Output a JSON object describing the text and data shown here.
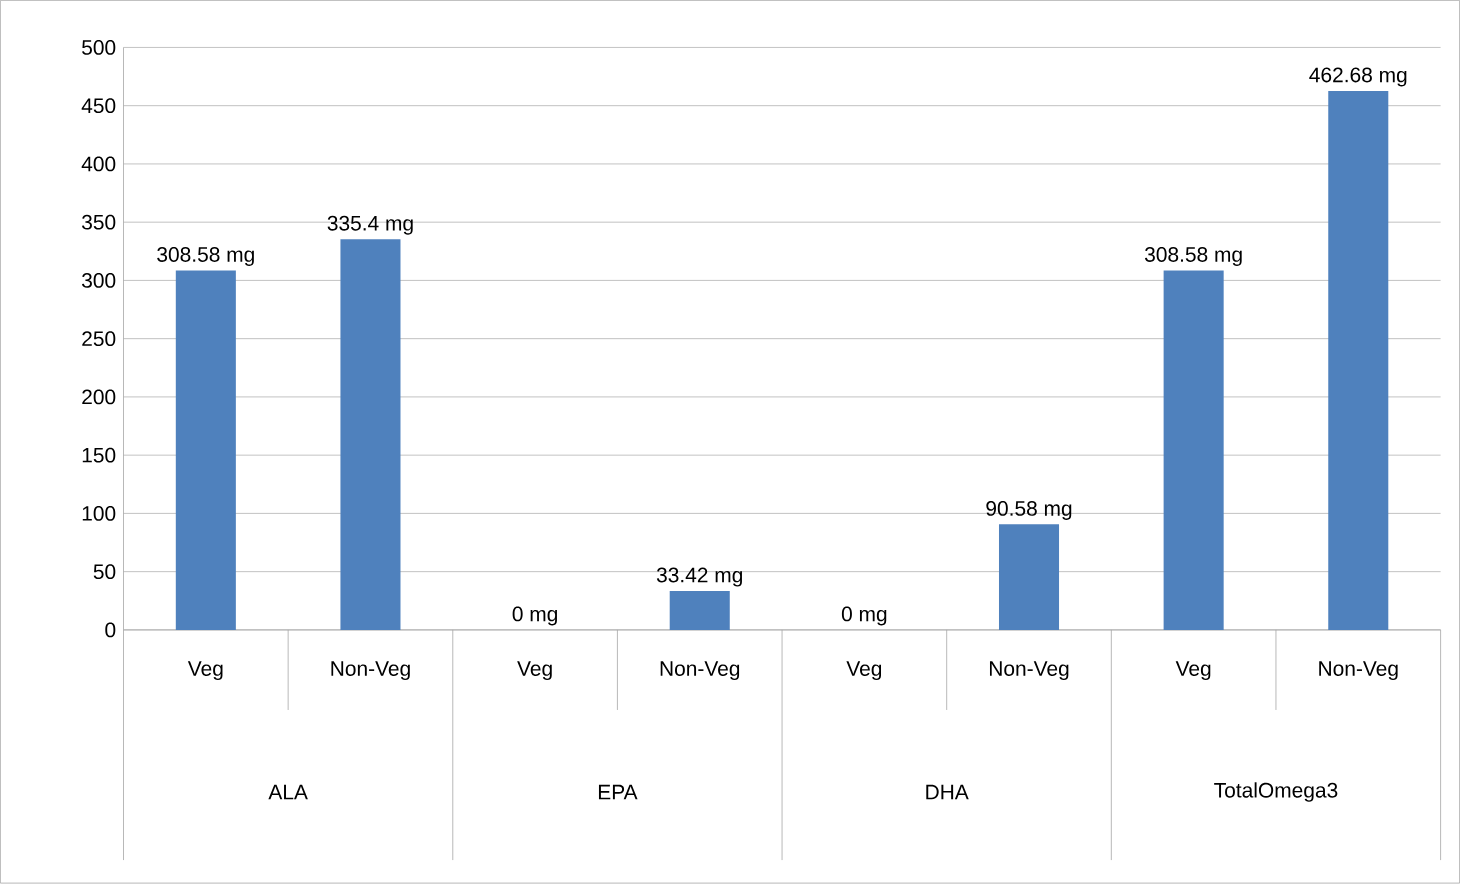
{
  "chart_data": {
    "type": "bar",
    "categories": [
      "Veg",
      "Non-Veg",
      "Veg",
      "Non-Veg",
      "Veg",
      "Non-Veg",
      "Veg",
      "Non-Veg"
    ],
    "values": [
      308.58,
      335.4,
      0,
      33.42,
      0,
      90.58,
      308.58,
      462.68
    ],
    "value_labels": [
      "308.58 mg",
      "335.4 mg",
      "0 mg",
      "33.42 mg",
      "0 mg",
      "90.58 mg",
      "308.58 mg",
      "462.68 mg"
    ],
    "color": "#4f81bd",
    "ylim": [
      0,
      500
    ],
    "yticks": [
      0,
      50,
      100,
      150,
      200,
      250,
      300,
      350,
      400,
      450,
      500
    ],
    "grid": "y",
    "annotations": [
      "ALA",
      "EPA",
      "DHA",
      "TotalOmega3"
    ]
  }
}
